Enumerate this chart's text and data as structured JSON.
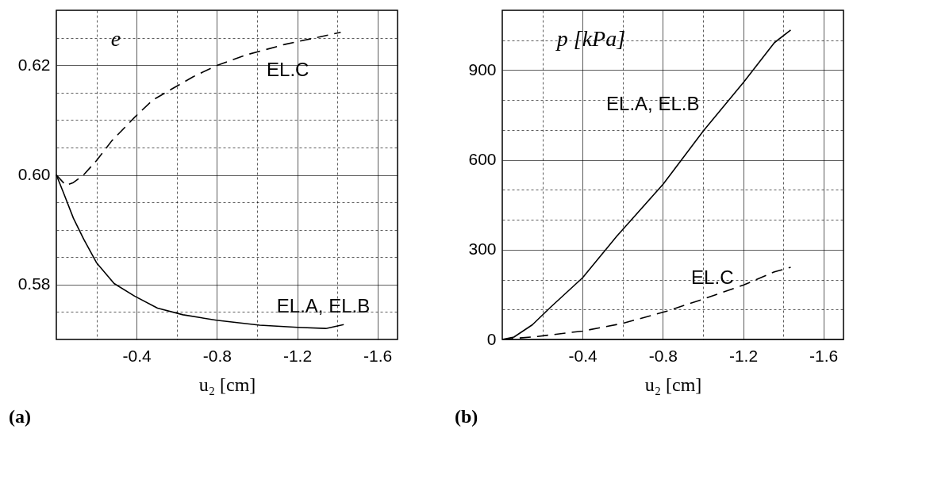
{
  "chart_data": [
    {
      "type": "line",
      "xlabel": "u₂ [cm]",
      "ylabel": "e",
      "xlim": [
        0,
        -1.7
      ],
      "ylim": [
        0.57,
        0.63
      ],
      "xticks": [
        {
          "value": -0.2,
          "label": null
        },
        -0.4,
        {
          "value": -0.6,
          "label": null
        },
        -0.8,
        {
          "value": -1.0,
          "label": null
        },
        -1.2,
        {
          "value": -1.4,
          "label": null
        },
        -1.6
      ],
      "yticks": [
        {
          "value": 0.575,
          "label": null
        },
        0.58,
        {
          "value": 0.585,
          "label": null
        },
        {
          "value": 0.59,
          "label": null
        },
        {
          "value": 0.595,
          "label": null
        },
        {
          "value": 0.6,
          "label": "0.60"
        },
        {
          "value": 0.605,
          "label": null
        },
        {
          "value": 0.61,
          "label": null
        },
        {
          "value": 0.615,
          "label": null
        },
        0.62,
        {
          "value": 0.625,
          "label": null
        }
      ],
      "grid": true,
      "legend": false,
      "marker": "none",
      "series": [
        {
          "name": "EL.C",
          "color": "#000000",
          "line_style": "dashed",
          "x": [
            0,
            -0.047,
            -0.085,
            -0.136,
            -0.2,
            -0.276,
            -0.39,
            -0.479,
            -0.568,
            -0.682,
            -0.797,
            -0.949,
            -1.14,
            -1.292,
            -1.417
          ],
          "values": [
            0.6,
            0.5981,
            0.5986,
            0.6,
            0.6026,
            0.6062,
            0.6105,
            0.6136,
            0.6155,
            0.6179,
            0.6199,
            0.6219,
            0.6238,
            0.625,
            0.626
          ]
        },
        {
          "name": "EL.A, EL.B",
          "color": "#000000",
          "line_style": "solid",
          "x": [
            0,
            -0.034,
            -0.085,
            -0.136,
            -0.2,
            -0.288,
            -0.39,
            -0.504,
            -0.631,
            -0.797,
            -1.013,
            -1.203,
            -1.343,
            -1.432
          ],
          "values": [
            0.6,
            0.5969,
            0.5921,
            0.5883,
            0.584,
            0.5802,
            0.5779,
            0.5757,
            0.5745,
            0.5735,
            0.5726,
            0.5722,
            0.572,
            0.5727
          ]
        }
      ],
      "annotations": [
        "(a)"
      ]
    },
    {
      "type": "line",
      "xlabel": "u₂ [cm]",
      "ylabel": "p [kPa]",
      "xlim": [
        0,
        -1.7
      ],
      "ylim": [
        0,
        1100
      ],
      "xticks": [
        {
          "value": -0.2,
          "label": null
        },
        -0.4,
        {
          "value": -0.6,
          "label": null
        },
        -0.8,
        {
          "value": -1.0,
          "label": null
        },
        -1.2,
        {
          "value": -1.4,
          "label": null
        },
        -1.6
      ],
      "yticks": [
        0,
        {
          "value": 100,
          "label": null
        },
        {
          "value": 200,
          "label": null
        },
        300,
        {
          "value": 400,
          "label": null
        },
        {
          "value": 500,
          "label": null
        },
        600,
        {
          "value": 700,
          "label": null
        },
        {
          "value": 800,
          "label": null
        },
        900,
        {
          "value": 1000,
          "label": null
        }
      ],
      "grid": true,
      "legend": false,
      "marker": "none",
      "series": [
        {
          "name": "EL.A, EL.B",
          "color": "#000000",
          "line_style": "solid",
          "x": [
            0,
            -0.058,
            -0.15,
            -0.241,
            -0.4,
            -0.569,
            -0.803,
            -1.002,
            -1.203,
            -1.356,
            -1.437
          ],
          "values": [
            0,
            8,
            49,
            108,
            206,
            344,
            520,
            697,
            860,
            992,
            1034
          ]
        },
        {
          "name": "EL.C",
          "color": "#000000",
          "line_style": "dashed",
          "x": [
            0,
            -0.176,
            -0.4,
            -0.595,
            -0.818,
            -1.002,
            -1.203,
            -1.356,
            -1.437
          ],
          "values": [
            0,
            10,
            28,
            53,
            94,
            135,
            182,
            226,
            241
          ]
        }
      ],
      "annotations": [
        "(b)"
      ]
    }
  ]
}
